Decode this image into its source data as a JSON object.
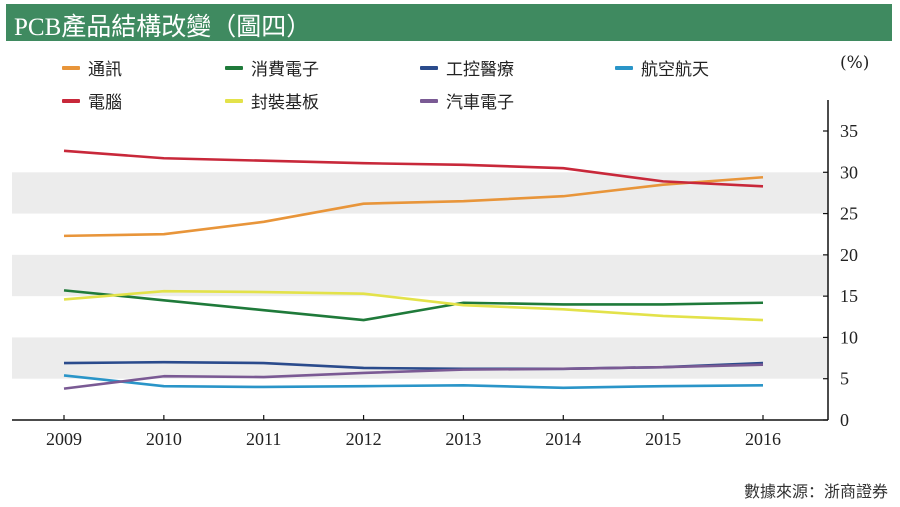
{
  "header": {
    "title": "PCB產品結構改變（圖四）"
  },
  "source": "數據來源：浙商證券",
  "chart_data": {
    "type": "line",
    "title": "PCB產品結構改變（圖四）",
    "ylabel": "(%)",
    "xlabel": "",
    "x": [
      "2009",
      "2010",
      "2011",
      "2012",
      "2013",
      "2014",
      "2015",
      "2016"
    ],
    "ylim": [
      0,
      35
    ],
    "yticks": [
      "0",
      "5",
      "10",
      "15",
      "20",
      "25",
      "30",
      "35"
    ],
    "y_axis_side": "right",
    "shaded_bands": [
      [
        5,
        10
      ],
      [
        15,
        20
      ],
      [
        25,
        30
      ]
    ],
    "legend_position": "top",
    "series": [
      {
        "name": "通訊",
        "color": "#e8953a",
        "values": [
          22.3,
          22.5,
          24.0,
          26.2,
          26.5,
          27.1,
          28.5,
          29.4
        ]
      },
      {
        "name": "消費電子",
        "color": "#1f7a3a",
        "values": [
          15.7,
          14.5,
          13.3,
          12.1,
          14.2,
          14.0,
          14.0,
          14.2
        ]
      },
      {
        "name": "工控醫療",
        "color": "#2a4b8c",
        "values": [
          6.9,
          7.0,
          6.9,
          6.3,
          6.2,
          6.2,
          6.4,
          6.9
        ]
      },
      {
        "name": "航空航天",
        "color": "#2a95c8",
        "values": [
          5.4,
          4.1,
          4.0,
          4.1,
          4.2,
          3.9,
          4.1,
          4.2
        ]
      },
      {
        "name": "電腦",
        "color": "#c8283a",
        "values": [
          32.6,
          31.7,
          31.4,
          31.1,
          30.9,
          30.5,
          28.9,
          28.3
        ]
      },
      {
        "name": "封裝基板",
        "color": "#e3e24a",
        "values": [
          14.6,
          15.6,
          15.5,
          15.3,
          13.9,
          13.4,
          12.6,
          12.1
        ]
      },
      {
        "name": "汽車電子",
        "color": "#7a5a94",
        "values": [
          3.8,
          5.3,
          5.2,
          5.7,
          6.1,
          6.2,
          6.4,
          6.7
        ]
      }
    ]
  }
}
